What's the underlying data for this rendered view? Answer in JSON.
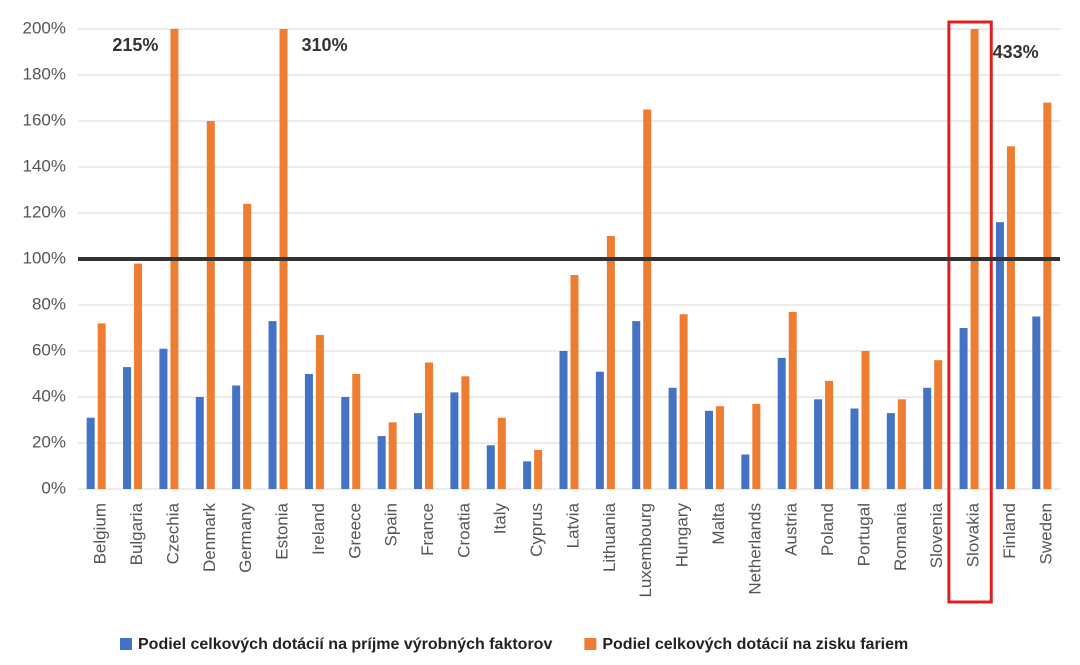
{
  "chart_data": {
    "type": "bar",
    "categories": [
      "Belgium",
      "Bulgaria",
      "Czechia",
      "Denmark",
      "Germany",
      "Estonia",
      "Ireland",
      "Greece",
      "Spain",
      "France",
      "Croatia",
      "Italy",
      "Cyprus",
      "Latvia",
      "Lithuania",
      "Luxembourg",
      "Hungary",
      "Malta",
      "Netherlands",
      "Austria",
      "Poland",
      "Portugal",
      "Romania",
      "Slovenia",
      "Slovakia",
      "Finland",
      "Sweden"
    ],
    "series": [
      {
        "name": "Podiel celkových dotácií na príjme výrobných faktorov",
        "color": "#4472c4",
        "values": [
          31,
          53,
          61,
          40,
          45,
          73,
          50,
          40,
          23,
          33,
          42,
          19,
          12,
          60,
          51,
          73,
          44,
          34,
          15,
          57,
          39,
          35,
          33,
          44,
          70,
          116,
          75
        ]
      },
      {
        "name": "Podiel celkových dotácií na zisku fariem",
        "color": "#ed7d31",
        "values": [
          72,
          98,
          215,
          160,
          124,
          310,
          67,
          50,
          29,
          55,
          49,
          31,
          17,
          93,
          110,
          165,
          76,
          36,
          37,
          77,
          47,
          60,
          39,
          56,
          433,
          149,
          168
        ],
        "value_labels": [
          null,
          null,
          "215%",
          null,
          null,
          "310%",
          null,
          null,
          null,
          null,
          null,
          null,
          null,
          null,
          null,
          null,
          null,
          null,
          null,
          null,
          null,
          null,
          null,
          null,
          "433%",
          null,
          null
        ]
      }
    ],
    "ylim": [
      0,
      200
    ],
    "yticks": [
      {
        "value": 0,
        "label": "0%"
      },
      {
        "value": 20,
        "label": "20%"
      },
      {
        "value": 40,
        "label": "40%"
      },
      {
        "value": 60,
        "label": "60%"
      },
      {
        "value": 80,
        "label": "80%"
      },
      {
        "value": 100,
        "label": "100%"
      },
      {
        "value": 120,
        "label": "120%"
      },
      {
        "value": 140,
        "label": "140%"
      },
      {
        "value": 160,
        "label": "160%"
      },
      {
        "value": 180,
        "label": "180%"
      },
      {
        "value": 200,
        "label": "200%"
      }
    ],
    "grid": true,
    "reference_line": 100,
    "highlight": "Slovakia",
    "legend": "bottom"
  }
}
